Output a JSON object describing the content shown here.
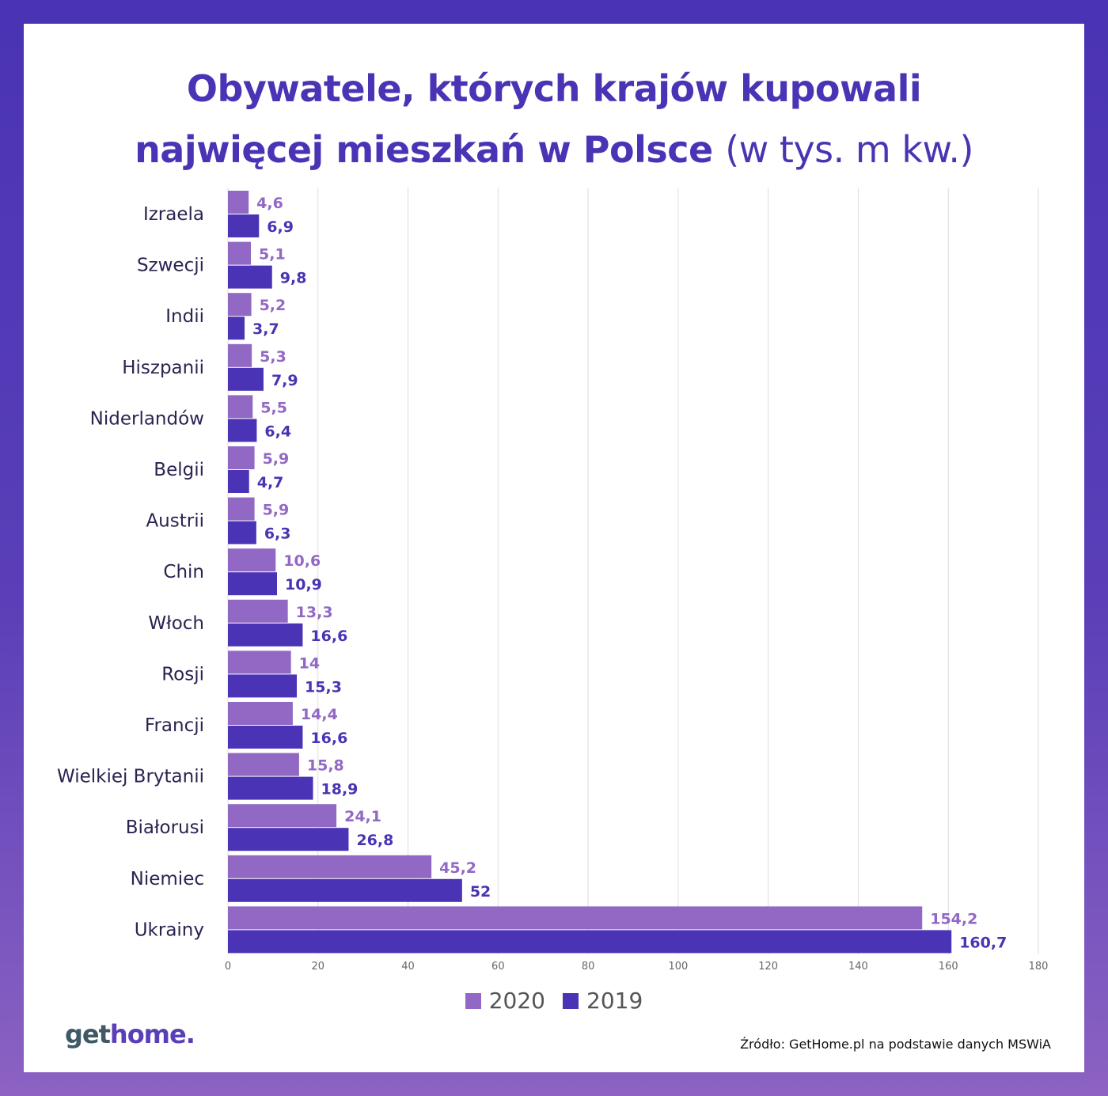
{
  "title": {
    "line1": "Obywatele, których krajów kupowali",
    "line2": "najwięcej mieszkań w Polsce",
    "unit": "(w tys. m kw.)"
  },
  "chart_data": {
    "type": "bar",
    "orientation": "horizontal",
    "categories": [
      "Izraela",
      "Szwecji",
      "Indii",
      "Hiszpanii",
      "Niderlandów",
      "Belgii",
      "Austrii",
      "Chin",
      "Włoch",
      "Rosji",
      "Francji",
      "Wielkiej Brytanii",
      "Białorusi",
      "Niemiec",
      "Ukrainy"
    ],
    "series": [
      {
        "name": "2020",
        "color": "#9169c5",
        "values": [
          4.6,
          5.1,
          5.2,
          5.3,
          5.5,
          5.9,
          5.9,
          10.6,
          13.3,
          14,
          14.4,
          15.8,
          24.1,
          45.2,
          154.2
        ],
        "labels": [
          "4,6",
          "5,1",
          "5,2",
          "5,3",
          "5,5",
          "5,9",
          "5,9",
          "10,6",
          "13,3",
          "14",
          "14,4",
          "15,8",
          "24,1",
          "45,2",
          "154,2"
        ]
      },
      {
        "name": "2019",
        "color": "#4a33b4",
        "values": [
          6.9,
          9.8,
          3.7,
          7.9,
          6.4,
          4.7,
          6.3,
          10.9,
          16.6,
          15.3,
          16.6,
          18.9,
          26.8,
          52,
          160.7
        ],
        "labels": [
          "6,9",
          "9,8",
          "3,7",
          "7,9",
          "6,4",
          "4,7",
          "6,3",
          "10,9",
          "16,6",
          "15,3",
          "16,6",
          "18,9",
          "26,8",
          "52",
          "160,7"
        ]
      }
    ],
    "xlim": [
      0,
      180
    ],
    "xticks": [
      "0",
      "20",
      "40",
      "60",
      "80",
      "100",
      "120",
      "140",
      "160",
      "180"
    ],
    "grid": true,
    "legend_position": "bottom"
  },
  "legend": {
    "label_2020": "2020",
    "label_2019": "2019"
  },
  "logo": {
    "part1": "get",
    "part2": "home."
  },
  "source": "Źródło: GetHome.pl na podstawie danych MSWiA"
}
